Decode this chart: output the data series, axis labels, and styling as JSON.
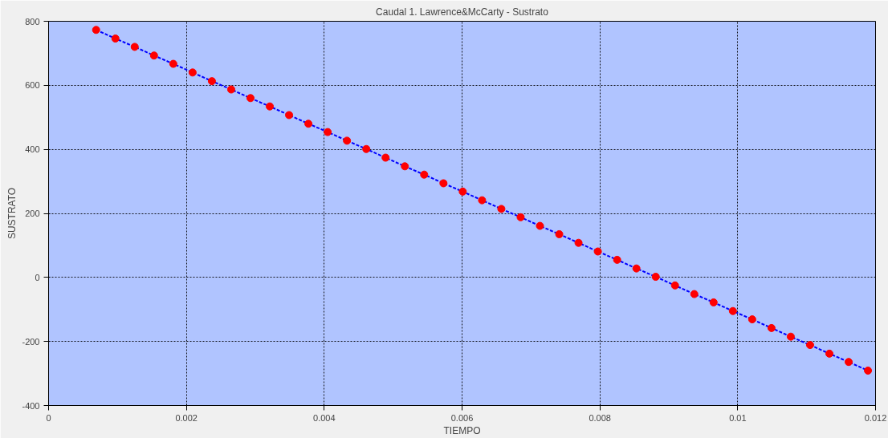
{
  "chart_data": {
    "type": "line",
    "title": "Caudal 1. Lawrence&McCarty - Sustrato",
    "xlabel": "TIEMPO",
    "ylabel": "SUSTRATO",
    "xlim": [
      0,
      0.012
    ],
    "xticks": [
      0,
      0.002,
      0.004,
      0.006,
      0.008,
      0.01,
      0.012
    ],
    "ylim": [
      -400,
      800
    ],
    "yticks": [
      -400,
      -200,
      0,
      200,
      400,
      600,
      800
    ],
    "grid": true,
    "marker": "circle",
    "line_style": "dashed",
    "series": [
      {
        "color": "#0000ff",
        "colors": [
          "#ff0000",
          "#ff0000",
          "#ff0000",
          "#ff0000",
          "#ff0000",
          "#ff0000",
          "#ff0000",
          "#ff0000",
          "#ff0000",
          "#ff0000",
          "#ff0000",
          "#ff0000",
          "#ff0000",
          "#ff0000",
          "#ff0000",
          "#ff0000",
          "#ff0000",
          "#ff0000",
          "#ff0000",
          "#ff0000",
          "#ff0000",
          "#ff0000",
          "#ff0000",
          "#ff0000",
          "#ff0000",
          "#ff0000",
          "#ff0000",
          "#ff0000",
          "#ff0000",
          "#ff0000",
          "#ff0000",
          "#ff0000",
          "#ff0000",
          "#ff0000",
          "#ff0000",
          "#ff0000",
          "#ff0000",
          "#ff0000",
          "#ff0000",
          "#ff0000",
          "#ff0000"
        ],
        "x": [
          0.00069,
          0.00097,
          0.00125,
          0.00153,
          0.00181,
          0.00209,
          0.00237,
          0.00265,
          0.00293,
          0.00321,
          0.00349,
          0.00377,
          0.00405,
          0.00433,
          0.00461,
          0.00489,
          0.00517,
          0.00545,
          0.00573,
          0.00601,
          0.00629,
          0.00657,
          0.00685,
          0.00713,
          0.00741,
          0.00769,
          0.00797,
          0.00825,
          0.00853,
          0.00881,
          0.00909,
          0.00937,
          0.00965,
          0.00993,
          0.01021,
          0.01049,
          0.01077,
          0.01105,
          0.01133,
          0.01161,
          0.01189
        ],
        "values": [
          773,
          746,
          720,
          693,
          667,
          640,
          613,
          587,
          560,
          534,
          507,
          480,
          454,
          427,
          401,
          374,
          347,
          321,
          294,
          268,
          241,
          214,
          188,
          161,
          135,
          108,
          81,
          55,
          28,
          2,
          -25,
          -52,
          -78,
          -105,
          -131,
          -158,
          -185,
          -211,
          -238,
          -264,
          -291
        ]
      }
    ]
  }
}
